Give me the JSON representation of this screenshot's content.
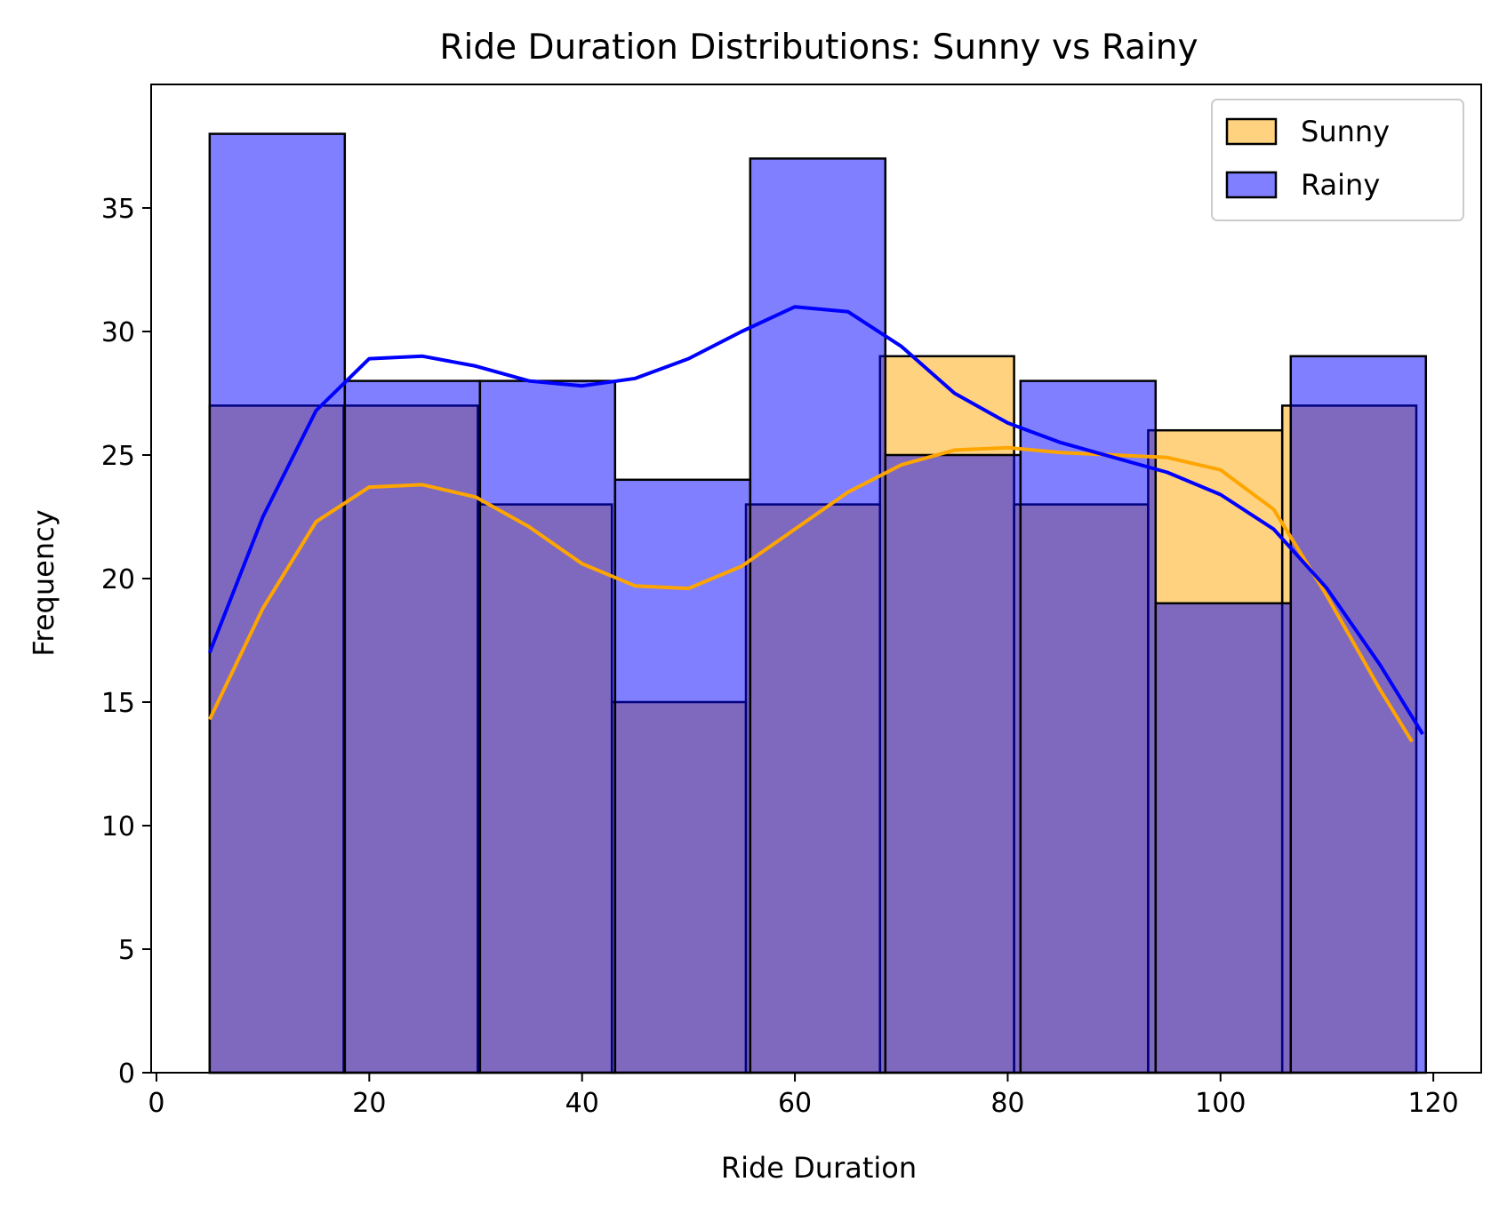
{
  "chart_data": {
    "type": "histogram",
    "title": "Ride Duration Distributions: Sunny vs Rainy",
    "xlabel": "Ride Duration",
    "ylabel": "Frequency",
    "xlim": [
      -0.5,
      124.5
    ],
    "ylim": [
      0,
      40
    ],
    "xticks": [
      0,
      20,
      40,
      60,
      80,
      100,
      120
    ],
    "yticks": [
      0,
      5,
      10,
      15,
      20,
      25,
      30,
      35
    ],
    "grid": false,
    "legend_position": "top-right",
    "series": [
      {
        "name": "Sunny",
        "color": "#FFA500",
        "bin_edges": [
          5,
          17.6,
          30.2,
          42.8,
          55.4,
          68,
          80.6,
          93.2,
          105.8,
          118.4
        ],
        "counts": [
          27,
          27,
          23,
          15,
          23,
          29,
          23,
          26,
          27
        ],
        "kde": [
          [
            5,
            14.3
          ],
          [
            10,
            18.8
          ],
          [
            15,
            22.3
          ],
          [
            20,
            23.7
          ],
          [
            25,
            23.8
          ],
          [
            30,
            23.3
          ],
          [
            35,
            22.1
          ],
          [
            40,
            20.6
          ],
          [
            45,
            19.7
          ],
          [
            50,
            19.6
          ],
          [
            55,
            20.5
          ],
          [
            60,
            22.0
          ],
          [
            65,
            23.5
          ],
          [
            70,
            24.6
          ],
          [
            75,
            25.2
          ],
          [
            80,
            25.3
          ],
          [
            85,
            25.1
          ],
          [
            90,
            25.0
          ],
          [
            95,
            24.9
          ],
          [
            100,
            24.4
          ],
          [
            105,
            22.8
          ],
          [
            110,
            19.3
          ],
          [
            115,
            15.5
          ],
          [
            118,
            13.4
          ]
        ]
      },
      {
        "name": "Rainy",
        "color": "#0000FF",
        "bin_edges": [
          5,
          17.7,
          30.4,
          43.1,
          55.8,
          68.5,
          81.2,
          93.9,
          106.6,
          119.3
        ],
        "counts": [
          38,
          28,
          28,
          24,
          37,
          25,
          28,
          19,
          29
        ],
        "kde": [
          [
            5,
            17.0
          ],
          [
            10,
            22.5
          ],
          [
            15,
            26.8
          ],
          [
            20,
            28.9
          ],
          [
            25,
            29.0
          ],
          [
            30,
            28.6
          ],
          [
            35,
            28.0
          ],
          [
            40,
            27.8
          ],
          [
            45,
            28.1
          ],
          [
            50,
            28.9
          ],
          [
            55,
            30.0
          ],
          [
            60,
            31.0
          ],
          [
            65,
            30.8
          ],
          [
            70,
            29.4
          ],
          [
            75,
            27.5
          ],
          [
            80,
            26.3
          ],
          [
            85,
            25.5
          ],
          [
            90,
            24.9
          ],
          [
            95,
            24.3
          ],
          [
            100,
            23.4
          ],
          [
            105,
            22.0
          ],
          [
            110,
            19.6
          ],
          [
            115,
            16.5
          ],
          [
            119,
            13.7
          ]
        ]
      }
    ]
  }
}
